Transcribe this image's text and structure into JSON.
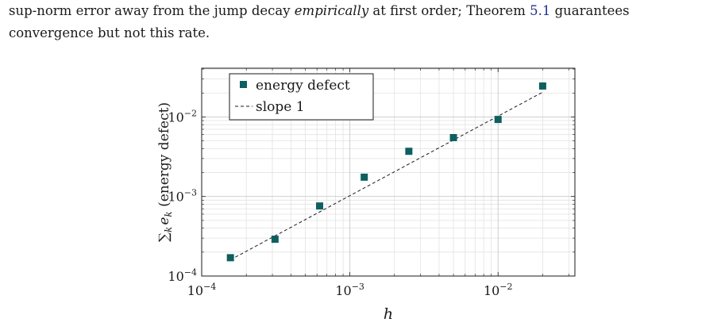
{
  "paragraph": {
    "line1_a": "sup-norm error away from the jump decay ",
    "line1_em": "empirically",
    "line1_b": " at first order; Theorem ",
    "line1_ref": "5.1",
    "line1_c": " guarantees",
    "line2": "convergence but not this rate."
  },
  "chart_data": {
    "type": "scatter",
    "xscale": "log",
    "yscale": "log",
    "xlim": [
      0.0001,
      0.033
    ],
    "ylim": [
      0.0001,
      0.041
    ],
    "grid": true,
    "legend_position": "top-left",
    "xlabel": "h",
    "ylabel_sum": "∑",
    "ylabel_sub_k": "k",
    "ylabel_e": "e",
    "ylabel_rest": " (energy defect)",
    "x_ticks": [
      {
        "value": 0.0001,
        "base": "10",
        "exp": "−4"
      },
      {
        "value": 0.001,
        "base": "10",
        "exp": "−3"
      },
      {
        "value": 0.01,
        "base": "10",
        "exp": "−2"
      }
    ],
    "y_ticks": [
      {
        "value": 0.0001,
        "base": "10",
        "exp": "−4"
      },
      {
        "value": 0.001,
        "base": "10",
        "exp": "−3"
      },
      {
        "value": 0.01,
        "base": "10",
        "exp": "−2"
      }
    ],
    "series": [
      {
        "name": "energy defect",
        "marker": "square",
        "color": "#0e5f5f",
        "x": [
          0.00015625,
          0.0003125,
          0.000625,
          0.00125,
          0.0025,
          0.005,
          0.01,
          0.02
        ],
        "y": [
          0.00017,
          0.00029,
          0.00076,
          0.00175,
          0.0037,
          0.0055,
          0.0093,
          0.0245
        ]
      },
      {
        "name": "slope 1",
        "style": "dashed",
        "color": "#1a1a1a",
        "x": [
          0.00015625,
          0.02
        ],
        "y": [
          0.00016,
          0.02048
        ]
      }
    ]
  }
}
